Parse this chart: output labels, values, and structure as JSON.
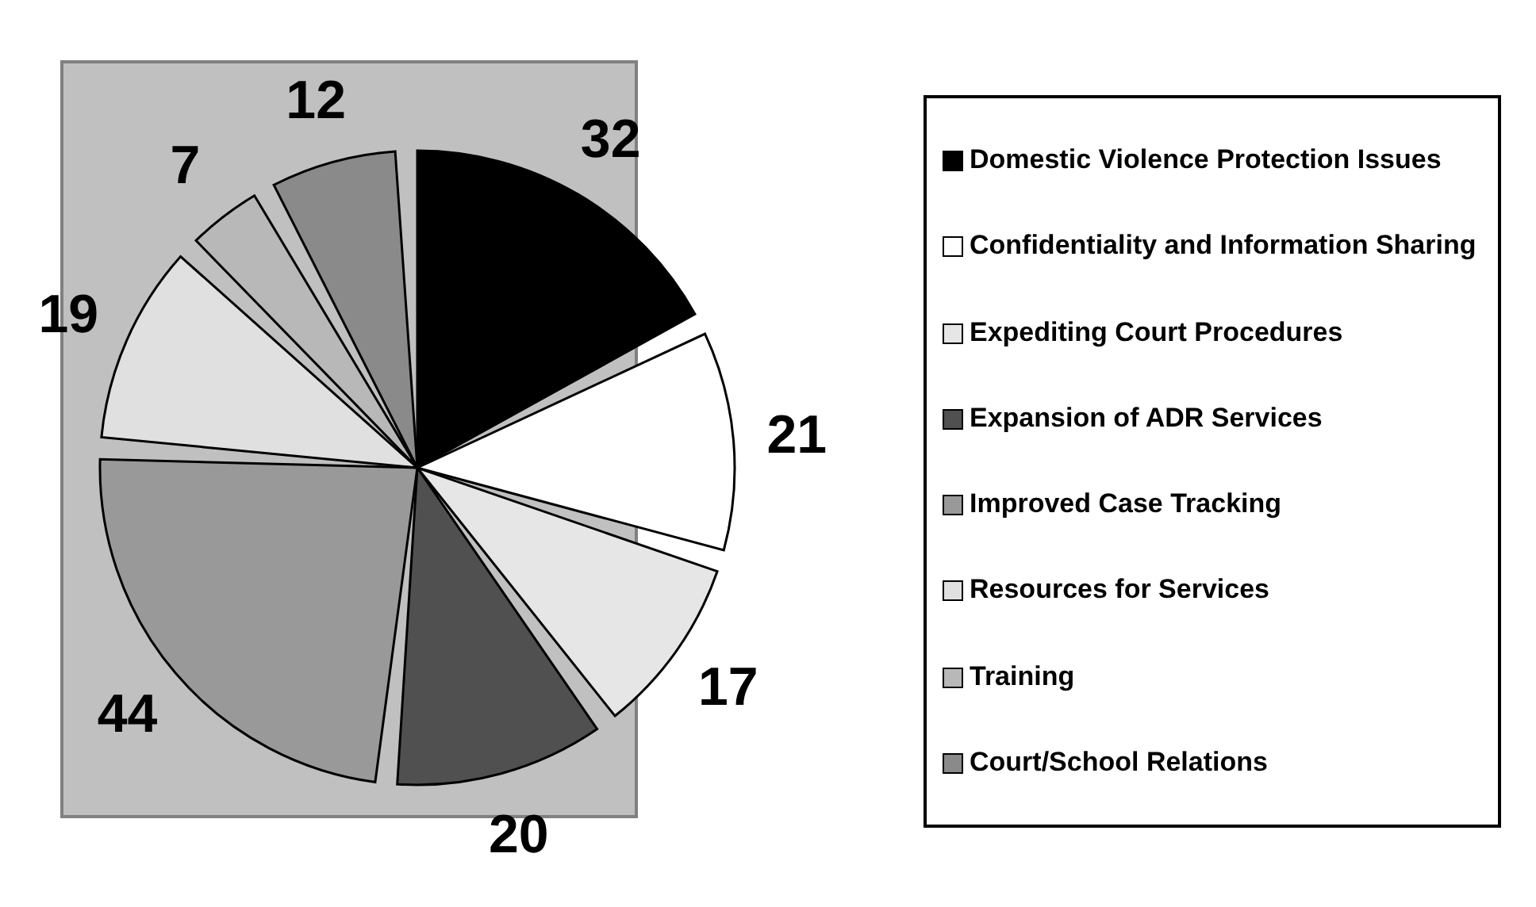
{
  "chart_data": {
    "type": "pie",
    "categories": [
      "Domestic Violence Protection Issues",
      "Confidentiality and Information Sharing",
      "Expediting Court Procedures",
      "Expansion of ADR Services",
      "Improved Case Tracking",
      "Resources for Services",
      "Training",
      "Court/School Relations"
    ],
    "values": [
      32,
      21,
      17,
      20,
      44,
      19,
      7,
      12
    ],
    "colors": [
      "#000000",
      "#ffffff",
      "#e6e6e6",
      "#505050",
      "#999999",
      "#e0e0e0",
      "#b8b8b8",
      "#8a8a8a"
    ],
    "data_labels": true,
    "legend": "right"
  }
}
